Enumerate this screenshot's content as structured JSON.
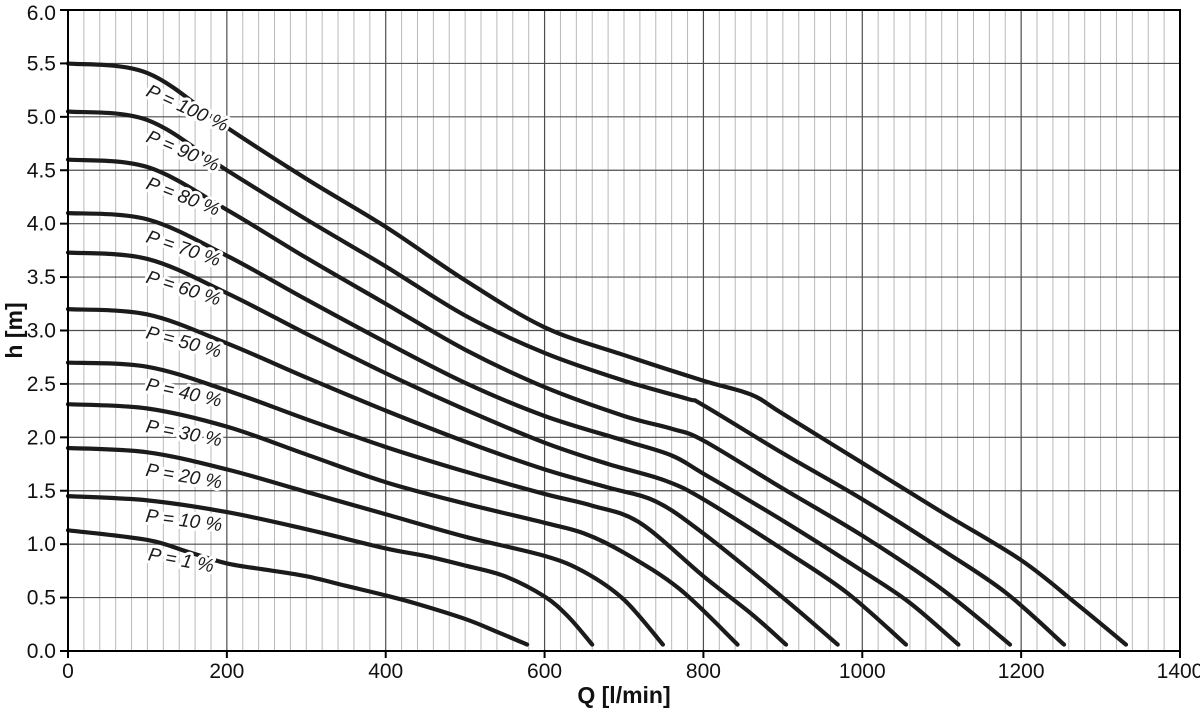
{
  "chart_data": {
    "type": "line",
    "title": "",
    "xlabel": "Q [l/min]",
    "ylabel": "h [m]",
    "xlim": [
      0,
      1400
    ],
    "ylim": [
      0,
      6.0
    ],
    "x_major_tick_step": 200,
    "x_minor_tick_step": 20,
    "y_major_tick_step": 0.5,
    "x_tick_labels": [
      "0",
      "200",
      "400",
      "600",
      "800",
      "1000",
      "1200",
      "1400"
    ],
    "y_tick_labels": [
      "0.0",
      "0.5",
      "1.0",
      "1.5",
      "2.0",
      "2.5",
      "3.0",
      "3.5",
      "4.0",
      "4.5",
      "5.0",
      "5.5",
      "6.0"
    ],
    "grid": "x-minor light, x/y-major dark, black frame",
    "legend_position": "inline-curve-labels",
    "series": [
      {
        "id": "p100",
        "name": "P = 100 %",
        "label": {
          "text": "P = 100 %",
          "q": 97,
          "h": 5.2
        },
        "points": [
          [
            0,
            5.5
          ],
          [
            100,
            5.41
          ],
          [
            200,
            4.9
          ],
          [
            300,
            4.42
          ],
          [
            400,
            3.97
          ],
          [
            500,
            3.47
          ],
          [
            600,
            3.03
          ],
          [
            700,
            2.77
          ],
          [
            800,
            2.53
          ],
          [
            860,
            2.4
          ],
          [
            900,
            2.22
          ],
          [
            1000,
            1.76
          ],
          [
            1100,
            1.3
          ],
          [
            1200,
            0.85
          ],
          [
            1270,
            0.44
          ],
          [
            1332,
            0.06
          ]
        ]
      },
      {
        "id": "p90",
        "name": "P = 90 %",
        "label": {
          "text": "P = 90 %",
          "q": 97,
          "h": 4.77
        },
        "points": [
          [
            0,
            5.05
          ],
          [
            100,
            4.97
          ],
          [
            200,
            4.5
          ],
          [
            300,
            4.04
          ],
          [
            400,
            3.6
          ],
          [
            500,
            3.14
          ],
          [
            600,
            2.79
          ],
          [
            700,
            2.53
          ],
          [
            780,
            2.36
          ],
          [
            800,
            2.3
          ],
          [
            900,
            1.85
          ],
          [
            1000,
            1.42
          ],
          [
            1100,
            0.95
          ],
          [
            1180,
            0.55
          ],
          [
            1254,
            0.06
          ]
        ]
      },
      {
        "id": "p80",
        "name": "P = 80 %",
        "label": {
          "text": "P = 80 %",
          "q": 97,
          "h": 4.33
        },
        "points": [
          [
            0,
            4.6
          ],
          [
            100,
            4.53
          ],
          [
            200,
            4.13
          ],
          [
            300,
            3.68
          ],
          [
            400,
            3.25
          ],
          [
            500,
            2.82
          ],
          [
            600,
            2.47
          ],
          [
            700,
            2.2
          ],
          [
            760,
            2.08
          ],
          [
            800,
            1.97
          ],
          [
            900,
            1.52
          ],
          [
            1000,
            1.08
          ],
          [
            1100,
            0.58
          ],
          [
            1186,
            0.06
          ]
        ]
      },
      {
        "id": "p70",
        "name": "P = 70 %",
        "label": {
          "text": "P = 70 %",
          "q": 97,
          "h": 3.83
        },
        "points": [
          [
            0,
            4.1
          ],
          [
            100,
            4.04
          ],
          [
            200,
            3.7
          ],
          [
            300,
            3.29
          ],
          [
            400,
            2.89
          ],
          [
            500,
            2.51
          ],
          [
            600,
            2.2
          ],
          [
            700,
            1.97
          ],
          [
            760,
            1.83
          ],
          [
            800,
            1.66
          ],
          [
            900,
            1.22
          ],
          [
            1000,
            0.75
          ],
          [
            1060,
            0.45
          ],
          [
            1121,
            0.06
          ]
        ]
      },
      {
        "id": "p60",
        "name": "P = 60 %",
        "label": {
          "text": "P = 60 %",
          "q": 97,
          "h": 3.45
        },
        "points": [
          [
            0,
            3.73
          ],
          [
            100,
            3.67
          ],
          [
            200,
            3.35
          ],
          [
            300,
            2.97
          ],
          [
            400,
            2.6
          ],
          [
            500,
            2.26
          ],
          [
            600,
            1.95
          ],
          [
            680,
            1.75
          ],
          [
            750,
            1.6
          ],
          [
            800,
            1.42
          ],
          [
            900,
            0.95
          ],
          [
            980,
            0.55
          ],
          [
            1055,
            0.06
          ]
        ]
      },
      {
        "id": "p50",
        "name": "P = 50 %",
        "label": {
          "text": "P = 50 %",
          "q": 97,
          "h": 2.93
        },
        "points": [
          [
            0,
            3.2
          ],
          [
            100,
            3.15
          ],
          [
            200,
            2.88
          ],
          [
            300,
            2.56
          ],
          [
            400,
            2.25
          ],
          [
            500,
            1.96
          ],
          [
            600,
            1.7
          ],
          [
            680,
            1.53
          ],
          [
            740,
            1.4
          ],
          [
            800,
            1.1
          ],
          [
            900,
            0.5
          ],
          [
            969,
            0.06
          ]
        ]
      },
      {
        "id": "p40",
        "name": "P = 40 %",
        "label": {
          "text": "P = 40 %",
          "q": 97,
          "h": 2.44
        },
        "points": [
          [
            0,
            2.7
          ],
          [
            100,
            2.66
          ],
          [
            200,
            2.44
          ],
          [
            300,
            2.17
          ],
          [
            400,
            1.91
          ],
          [
            500,
            1.68
          ],
          [
            600,
            1.47
          ],
          [
            660,
            1.36
          ],
          [
            720,
            1.2
          ],
          [
            800,
            0.7
          ],
          [
            860,
            0.35
          ],
          [
            904,
            0.06
          ]
        ]
      },
      {
        "id": "p30",
        "name": "P = 30 %",
        "label": {
          "text": "P = 30 %",
          "q": 97,
          "h": 2.05
        },
        "points": [
          [
            0,
            2.31
          ],
          [
            100,
            2.27
          ],
          [
            200,
            2.1
          ],
          [
            300,
            1.84
          ],
          [
            400,
            1.58
          ],
          [
            500,
            1.38
          ],
          [
            600,
            1.2
          ],
          [
            650,
            1.1
          ],
          [
            700,
            0.92
          ],
          [
            770,
            0.58
          ],
          [
            843,
            0.06
          ]
        ]
      },
      {
        "id": "p20",
        "name": "P = 20 %",
        "label": {
          "text": "P = 20 %",
          "q": 97,
          "h": 1.64
        },
        "points": [
          [
            0,
            1.9
          ],
          [
            100,
            1.86
          ],
          [
            200,
            1.7
          ],
          [
            300,
            1.49
          ],
          [
            400,
            1.28
          ],
          [
            500,
            1.07
          ],
          [
            600,
            0.89
          ],
          [
            650,
            0.74
          ],
          [
            700,
            0.48
          ],
          [
            749,
            0.06
          ]
        ]
      },
      {
        "id": "p10",
        "name": "P = 10 %",
        "label": {
          "text": "P = 10 %",
          "q": 97,
          "h": 1.21
        },
        "points": [
          [
            0,
            1.45
          ],
          [
            100,
            1.41
          ],
          [
            200,
            1.3
          ],
          [
            300,
            1.14
          ],
          [
            400,
            0.96
          ],
          [
            450,
            0.89
          ],
          [
            500,
            0.8
          ],
          [
            550,
            0.7
          ],
          [
            600,
            0.51
          ],
          [
            630,
            0.32
          ],
          [
            660,
            0.06
          ]
        ]
      },
      {
        "id": "p1",
        "name": "P = 1 %",
        "label": {
          "text": "P = 1 %",
          "q": 100,
          "h": 0.85
        },
        "points": [
          [
            0,
            1.13
          ],
          [
            100,
            1.04
          ],
          [
            150,
            0.93
          ],
          [
            200,
            0.82
          ],
          [
            250,
            0.76
          ],
          [
            300,
            0.7
          ],
          [
            350,
            0.61
          ],
          [
            400,
            0.52
          ],
          [
            440,
            0.44
          ],
          [
            500,
            0.3
          ],
          [
            540,
            0.18
          ],
          [
            578,
            0.06
          ]
        ]
      }
    ]
  },
  "styles": {
    "background": "#ffffff",
    "curve_color": "#1b1b1b",
    "minor_grid_color": "#b9b9b9",
    "major_grid_color": "#4d4d4d",
    "frame_color": "#000000",
    "text_color": "#111111"
  }
}
